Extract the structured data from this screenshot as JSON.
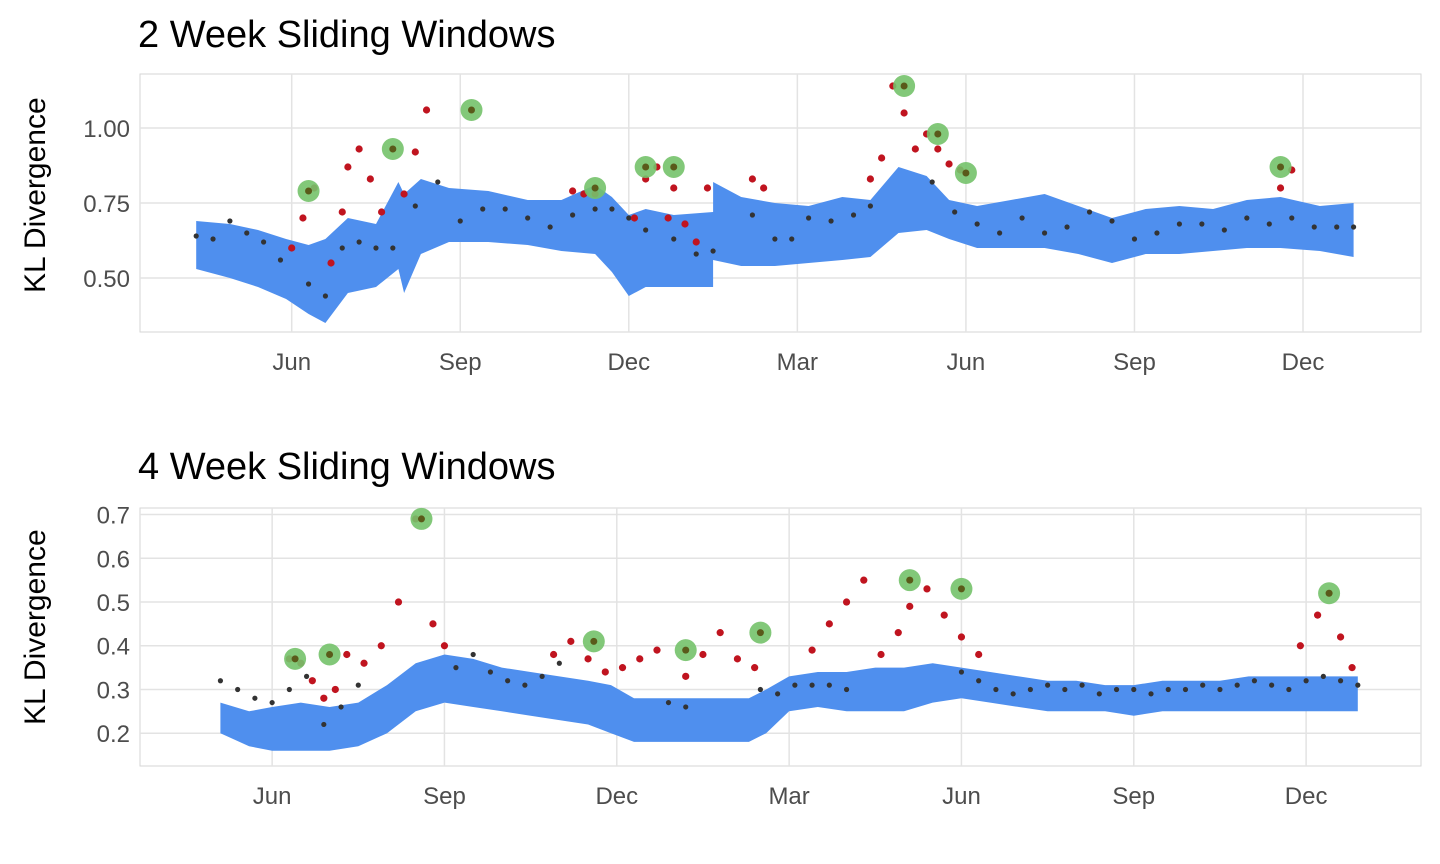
{
  "chart_data": [
    {
      "type": "line",
      "title": "2 Week Sliding Windows",
      "xlabel": "",
      "ylabel": "KL Divergence",
      "x_ticks": [
        "Jun",
        "Sep",
        "Dec",
        "Mar",
        "Jun",
        "Sep",
        "Dec"
      ],
      "x_tick_positions": [
        2,
        5,
        8,
        11,
        14,
        17,
        20
      ],
      "x_range": [
        -0.7,
        22.1
      ],
      "y_ticks": [
        "0.50",
        "0.75",
        "1.00"
      ],
      "y_tick_values": [
        0.5,
        0.75,
        1.0
      ],
      "ylim": [
        0.32,
        1.18
      ],
      "grid": true,
      "colors": {
        "band": "#4f8fee",
        "normal": "#333333",
        "anomaly": "#c0141f",
        "peak": "#74c26a"
      },
      "band": {
        "x": [
          0.3,
          0.9,
          1.4,
          1.9,
          2.3,
          2.6,
          3.0,
          3.5,
          3.9,
          4.0,
          4.3,
          4.8,
          5.5,
          6.2,
          6.8,
          7.4,
          7.7,
          8.0,
          8.3,
          8.8,
          9.5,
          9.5,
          10.0,
          10.6,
          11.2,
          11.8,
          12.3,
          12.8,
          13.3,
          13.7,
          14.2,
          14.8,
          15.4,
          16.0,
          16.6,
          17.2,
          17.8,
          18.4,
          19.0,
          19.6,
          20.3,
          20.9
        ],
        "upper": [
          0.69,
          0.68,
          0.66,
          0.63,
          0.61,
          0.63,
          0.7,
          0.68,
          0.82,
          0.78,
          0.83,
          0.8,
          0.79,
          0.76,
          0.76,
          0.81,
          0.77,
          0.71,
          0.73,
          0.71,
          0.72,
          0.82,
          0.77,
          0.75,
          0.74,
          0.77,
          0.76,
          0.87,
          0.84,
          0.76,
          0.74,
          0.76,
          0.78,
          0.74,
          0.7,
          0.73,
          0.74,
          0.73,
          0.76,
          0.77,
          0.74,
          0.75
        ],
        "lower": [
          0.53,
          0.5,
          0.47,
          0.43,
          0.38,
          0.35,
          0.45,
          0.47,
          0.53,
          0.45,
          0.58,
          0.62,
          0.62,
          0.61,
          0.59,
          0.58,
          0.52,
          0.44,
          0.47,
          0.47,
          0.47,
          0.56,
          0.54,
          0.54,
          0.55,
          0.56,
          0.57,
          0.65,
          0.66,
          0.63,
          0.6,
          0.6,
          0.6,
          0.58,
          0.55,
          0.58,
          0.58,
          0.59,
          0.6,
          0.6,
          0.59,
          0.57
        ]
      },
      "series_normal_x": [
        0.3,
        0.6,
        0.9,
        1.2,
        1.5,
        1.8,
        2.0,
        2.3,
        2.6,
        2.9,
        3.2,
        3.5,
        3.8,
        4.0,
        4.2,
        4.6,
        5.0,
        5.4,
        5.8,
        6.2,
        6.6,
        7.0,
        7.4,
        7.7,
        8.0,
        8.3,
        8.8,
        9.2,
        9.5,
        10.2,
        10.6,
        10.9,
        11.2,
        11.6,
        12.0,
        12.3,
        13.4,
        13.8,
        14.2,
        14.6,
        15.0,
        15.4,
        15.8,
        16.2,
        16.6,
        17.0,
        17.4,
        17.8,
        18.2,
        18.6,
        19.0,
        19.4,
        19.8,
        20.2,
        20.6,
        20.9
      ],
      "series_normal_y": [
        0.64,
        0.63,
        0.69,
        0.65,
        0.62,
        0.56,
        0.6,
        0.48,
        0.44,
        0.6,
        0.62,
        0.6,
        0.6,
        0.78,
        0.74,
        0.82,
        0.69,
        0.73,
        0.73,
        0.7,
        0.67,
        0.71,
        0.73,
        0.73,
        0.7,
        0.66,
        0.63,
        0.58,
        0.59,
        0.71,
        0.63,
        0.63,
        0.7,
        0.69,
        0.71,
        0.74,
        0.82,
        0.72,
        0.68,
        0.65,
        0.7,
        0.65,
        0.67,
        0.72,
        0.69,
        0.63,
        0.65,
        0.68,
        0.68,
        0.66,
        0.7,
        0.68,
        0.7,
        0.67,
        0.67,
        0.67
      ],
      "series_anomaly_x": [
        2.0,
        2.2,
        2.4,
        2.7,
        2.9,
        3.0,
        3.2,
        3.4,
        3.6,
        4.0,
        4.2,
        4.4,
        7.0,
        7.2,
        7.4,
        8.1,
        8.3,
        8.5,
        8.7,
        8.8,
        9.0,
        9.2,
        9.4,
        10.2,
        10.4,
        12.3,
        12.5,
        12.7,
        12.9,
        13.1,
        13.3,
        13.5,
        13.7,
        13.9,
        19.6,
        19.8
      ],
      "series_anomaly_y": [
        0.6,
        0.7,
        0.8,
        0.55,
        0.72,
        0.87,
        0.93,
        0.83,
        0.72,
        0.78,
        0.92,
        1.06,
        0.79,
        0.78,
        0.78,
        0.7,
        0.83,
        0.87,
        0.7,
        0.8,
        0.68,
        0.62,
        0.8,
        0.83,
        0.8,
        0.83,
        0.9,
        1.14,
        1.05,
        0.93,
        0.98,
        0.93,
        0.88,
        0.86,
        0.8,
        0.86
      ],
      "peaks_x": [
        2.3,
        3.8,
        5.2,
        7.4,
        8.3,
        8.8,
        12.9,
        13.5,
        14.0,
        19.6
      ],
      "peaks_y": [
        0.79,
        0.93,
        1.06,
        0.8,
        0.87,
        0.87,
        1.14,
        0.98,
        0.85,
        0.87
      ]
    },
    {
      "type": "line",
      "title": "4 Week Sliding Windows",
      "xlabel": "",
      "ylabel": "KL Divergence",
      "x_ticks": [
        "Jun",
        "Sep",
        "Dec",
        "Mar",
        "Jun",
        "Sep",
        "Dec"
      ],
      "x_tick_positions": [
        2,
        5,
        8,
        11,
        14,
        17,
        20
      ],
      "x_range": [
        -0.3,
        22.0
      ],
      "y_ticks": [
        "0.2",
        "0.3",
        "0.4",
        "0.5",
        "0.6",
        "0.7"
      ],
      "y_tick_values": [
        0.2,
        0.3,
        0.4,
        0.5,
        0.6,
        0.7
      ],
      "ylim": [
        0.125,
        0.715
      ],
      "grid": true,
      "colors": {
        "band": "#4f8fee",
        "normal": "#333333",
        "anomaly": "#c0141f",
        "peak": "#74c26a"
      },
      "band": {
        "x": [
          1.1,
          1.6,
          2.0,
          2.5,
          3.0,
          3.5,
          4.0,
          4.5,
          5.0,
          5.5,
          6.0,
          6.5,
          7.0,
          7.5,
          7.9,
          8.3,
          8.8,
          9.3,
          9.8,
          10.3,
          10.6,
          11.0,
          11.5,
          12.0,
          12.5,
          13.0,
          13.5,
          14.0,
          14.5,
          15.0,
          15.5,
          16.0,
          16.5,
          17.0,
          17.5,
          18.0,
          18.5,
          19.0,
          19.5,
          20.0,
          20.5,
          20.9
        ],
        "upper": [
          0.27,
          0.25,
          0.26,
          0.27,
          0.26,
          0.27,
          0.31,
          0.36,
          0.38,
          0.37,
          0.35,
          0.34,
          0.33,
          0.32,
          0.31,
          0.28,
          0.28,
          0.28,
          0.28,
          0.28,
          0.3,
          0.33,
          0.34,
          0.34,
          0.35,
          0.35,
          0.36,
          0.35,
          0.34,
          0.33,
          0.32,
          0.32,
          0.31,
          0.31,
          0.32,
          0.32,
          0.32,
          0.33,
          0.33,
          0.33,
          0.33,
          0.33
        ],
        "lower": [
          0.2,
          0.17,
          0.16,
          0.16,
          0.16,
          0.17,
          0.2,
          0.25,
          0.27,
          0.26,
          0.25,
          0.24,
          0.23,
          0.22,
          0.2,
          0.18,
          0.18,
          0.18,
          0.18,
          0.18,
          0.2,
          0.25,
          0.26,
          0.25,
          0.25,
          0.25,
          0.27,
          0.28,
          0.27,
          0.26,
          0.25,
          0.25,
          0.25,
          0.24,
          0.25,
          0.25,
          0.25,
          0.25,
          0.25,
          0.25,
          0.25,
          0.25
        ]
      },
      "series_normal_x": [
        1.1,
        1.4,
        1.7,
        2.0,
        2.3,
        2.6,
        2.9,
        3.2,
        3.5,
        5.2,
        5.5,
        5.8,
        6.1,
        6.4,
        6.7,
        7.0,
        8.9,
        9.2,
        10.5,
        10.8,
        11.1,
        11.4,
        11.7,
        12.0,
        14.0,
        14.3,
        14.6,
        14.9,
        15.2,
        15.5,
        15.8,
        16.1,
        16.4,
        16.7,
        17.0,
        17.3,
        17.6,
        17.9,
        18.2,
        18.5,
        18.8,
        19.1,
        19.4,
        19.7,
        20.0,
        20.3,
        20.6,
        20.9
      ],
      "series_normal_y": [
        0.32,
        0.3,
        0.28,
        0.27,
        0.3,
        0.33,
        0.22,
        0.26,
        0.31,
        0.35,
        0.38,
        0.34,
        0.32,
        0.31,
        0.33,
        0.36,
        0.27,
        0.26,
        0.3,
        0.29,
        0.31,
        0.31,
        0.31,
        0.3,
        0.34,
        0.32,
        0.3,
        0.29,
        0.3,
        0.31,
        0.3,
        0.31,
        0.29,
        0.3,
        0.3,
        0.29,
        0.3,
        0.3,
        0.31,
        0.3,
        0.31,
        0.32,
        0.31,
        0.3,
        0.32,
        0.33,
        0.32,
        0.31
      ],
      "series_anomaly_x": [
        2.3,
        2.5,
        2.7,
        2.9,
        3.1,
        3.3,
        3.6,
        3.9,
        4.2,
        4.5,
        4.8,
        5.0,
        6.9,
        7.2,
        7.5,
        7.8,
        8.1,
        8.4,
        8.7,
        9.2,
        9.5,
        9.8,
        10.1,
        10.4,
        11.4,
        11.7,
        12.0,
        12.3,
        12.6,
        12.9,
        13.1,
        13.4,
        13.7,
        14.0,
        14.3,
        19.9,
        20.2,
        20.4,
        20.6,
        20.8
      ],
      "series_anomaly_y": [
        0.37,
        0.36,
        0.32,
        0.28,
        0.3,
        0.38,
        0.36,
        0.4,
        0.5,
        0.69,
        0.45,
        0.4,
        0.38,
        0.41,
        0.37,
        0.34,
        0.35,
        0.37,
        0.39,
        0.33,
        0.38,
        0.43,
        0.37,
        0.35,
        0.39,
        0.45,
        0.5,
        0.55,
        0.38,
        0.43,
        0.49,
        0.53,
        0.47,
        0.42,
        0.38,
        0.4,
        0.47,
        0.52,
        0.42,
        0.35
      ],
      "peaks_x": [
        2.4,
        3.0,
        4.6,
        7.6,
        9.2,
        10.5,
        13.1,
        14.0,
        20.4
      ],
      "peaks_y": [
        0.37,
        0.38,
        0.69,
        0.41,
        0.39,
        0.43,
        0.55,
        0.53,
        0.52
      ]
    }
  ]
}
